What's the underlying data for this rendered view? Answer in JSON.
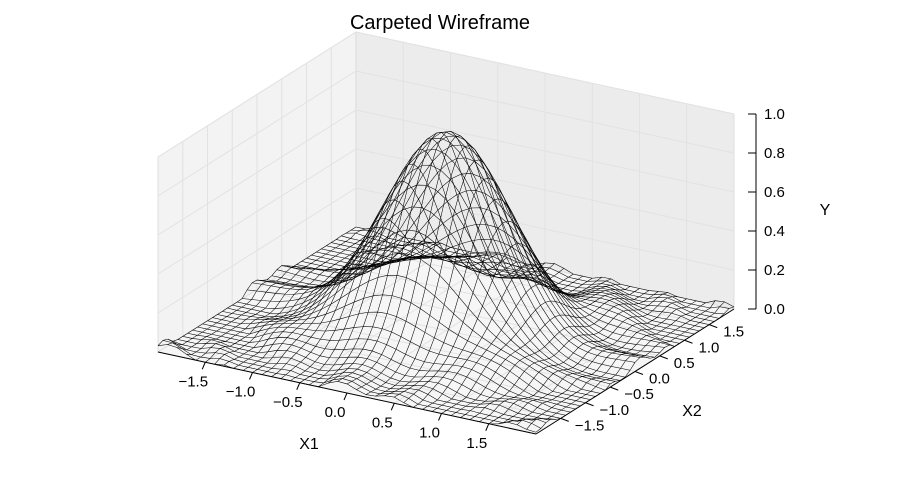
{
  "chart_data": {
    "type": "surface-wireframe",
    "title": "Carpeted Wireframe",
    "xlabel": "X1",
    "ylabel": "X2",
    "zlabel": "Y",
    "xlim": [
      -2,
      2
    ],
    "ylim": [
      -2,
      2
    ],
    "zlim": [
      0,
      1
    ],
    "x_ticks": [
      -1.5,
      -1.0,
      -0.5,
      0.0,
      0.5,
      1.0,
      1.5
    ],
    "x_tick_labels": [
      "−1.5",
      "−1.0",
      "−0.5",
      "0.0",
      "0.5",
      "1.0",
      "1.5"
    ],
    "y_ticks": [
      -1.5,
      -1.0,
      -0.5,
      0.0,
      0.5,
      1.0,
      1.5
    ],
    "y_tick_labels": [
      "−1.5",
      "−1.0",
      "−0.5",
      "0.0",
      "0.5",
      "1.0",
      "1.5"
    ],
    "z_ticks": [
      0.0,
      0.2,
      0.4,
      0.6,
      0.8,
      1.0
    ],
    "z_tick_labels": [
      "0.0",
      "0.2",
      "0.4",
      "0.6",
      "0.8",
      "1.0"
    ],
    "grid": true,
    "line_color": "#000000",
    "pane_color": "#f2f2f2",
    "surface": {
      "description_function": "Gaussian peak of height ~1 centered at origin with small ripple noise",
      "peak_center": [
        0,
        0
      ],
      "peak_height": 1.0,
      "sigma": 0.6,
      "grid_points": 41
    }
  }
}
